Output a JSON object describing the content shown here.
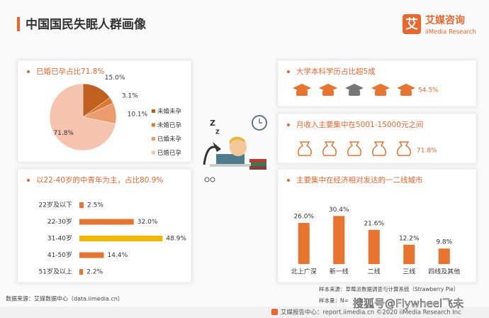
{
  "header": {
    "title": "中国国民失眠人群画像",
    "logo_mark": "艾",
    "brand": "艾媒咨询",
    "brand_en": "iiMedia Research"
  },
  "chart_data": [
    {
      "type": "pie",
      "title": "已婚已孕占比71.8%",
      "categories": [
        "未婚未孕",
        "未婚已孕",
        "已婚未孕",
        "已婚已孕"
      ],
      "values": [
        15.0,
        3.1,
        10.1,
        71.8
      ],
      "value_labels": [
        "15.0%",
        "3.1%",
        "10.1%",
        "71.8%"
      ],
      "colors": [
        "#c0601f",
        "#dc7a33",
        "#ec9b6c",
        "#f5c3ae"
      ]
    },
    {
      "type": "barh",
      "title": "以22-40岁的中青年为主，占比80.9%",
      "categories": [
        "22岁及以下",
        "22-30岁",
        "31-40岁",
        "41-50岁",
        "51岁及以上"
      ],
      "values": [
        2.5,
        32.0,
        48.9,
        14.4,
        2.2
      ],
      "value_labels": [
        "2.5%",
        "32.0%",
        "48.9%",
        "14.4%",
        "2.2%"
      ],
      "colors": [
        "#e8742f",
        "#e8742f",
        "#f5b800",
        "#e8742f",
        "#e8742f"
      ],
      "xlim": [
        0,
        50
      ]
    },
    {
      "type": "bar",
      "title": "主要集中在经济相对发达的一二线城市",
      "categories": [
        "北上广深",
        "新一线",
        "二线",
        "三线",
        "四线及其他"
      ],
      "values": [
        26.0,
        30.4,
        21.6,
        12.2,
        9.8
      ],
      "value_labels": [
        "26.0%",
        "30.4%",
        "21.6%",
        "12.2%",
        "9.8%"
      ],
      "color": "#e8742f",
      "ylim": [
        0,
        35
      ]
    }
  ],
  "education": {
    "title": "大学本科学历占比超5成",
    "stat": "54.5%"
  },
  "income": {
    "title": "月收入主要集中在5001-15000元之间",
    "stat": "71.8%"
  },
  "footer": {
    "source": "数据来源：艾媒数据中心（data.iimedia.cn）",
    "sample_source": "样本来源：草莓派数据调查与计算系统（Strawberry Pie）",
    "sample_size": "样本量：N=",
    "report": "艾媒报告中心：report.iimedia.cn  ©2020  iiMedia Research  Inc"
  },
  "watermark": "搜狐号@Flywheel飞未"
}
